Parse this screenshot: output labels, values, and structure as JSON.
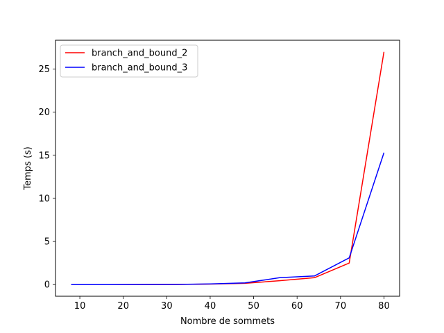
{
  "chart_data": {
    "type": "line",
    "title": "",
    "xlabel": "Nombre de sommets",
    "ylabel": "Temps (s)",
    "xlim": [
      4.4,
      83.6
    ],
    "ylim": [
      -1.35,
      28.35
    ],
    "xticks": [
      10,
      20,
      30,
      40,
      50,
      60,
      70,
      80
    ],
    "yticks": [
      0,
      5,
      10,
      15,
      20,
      25
    ],
    "grid": false,
    "legend_position": "top-left",
    "x": [
      8,
      16,
      24,
      32,
      40,
      48,
      56,
      64,
      72,
      80
    ],
    "series": [
      {
        "name": "branch_and_bound_2",
        "color": "#ff0000",
        "values": [
          0.0,
          0.0,
          0.01,
          0.02,
          0.06,
          0.15,
          0.45,
          0.8,
          2.5,
          27.0
        ]
      },
      {
        "name": "branch_and_bound_3",
        "color": "#0000ff",
        "values": [
          0.0,
          0.0,
          0.01,
          0.02,
          0.08,
          0.2,
          0.8,
          1.0,
          3.1,
          15.3
        ]
      }
    ]
  }
}
